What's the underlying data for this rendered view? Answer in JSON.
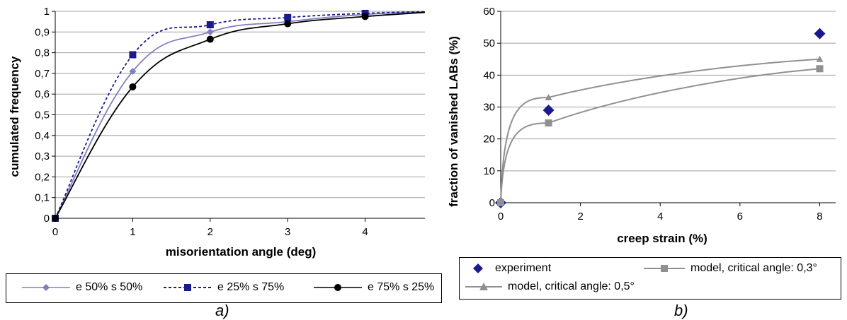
{
  "chart_data": [
    {
      "type": "line",
      "xlabel": "misorientation angle (deg)",
      "ylabel": "cumulated frequency",
      "xlim": [
        0,
        5
      ],
      "ylim": [
        0,
        1
      ],
      "x_ticks": [
        "0",
        "1",
        "2",
        "3",
        "4",
        "5"
      ],
      "y_ticks": [
        "0",
        "0,1",
        "0,2",
        "0,3",
        "0,4",
        "0,5",
        "0,6",
        "0,7",
        "0,8",
        "0,9",
        "1"
      ],
      "grid": "horizontal",
      "legend_position": "bottom",
      "caption": "a)",
      "series": [
        {
          "name": "e 50% s 50%",
          "color": "#8080c0",
          "dash": "solid",
          "marker": "diamond",
          "x": [
            0,
            1,
            2,
            3,
            4,
            5
          ],
          "values": [
            0,
            0.71,
            0.9,
            0.95,
            0.985,
            1.0
          ]
        },
        {
          "name": "e 25% s 75%",
          "color": "#1a1a8c",
          "dash": "dotted",
          "marker": "square",
          "x": [
            0,
            1,
            2,
            3,
            4,
            5
          ],
          "values": [
            0,
            0.79,
            0.935,
            0.97,
            0.99,
            1.0
          ]
        },
        {
          "name": "e 75% s 25%",
          "color": "#000000",
          "dash": "solid",
          "marker": "circle",
          "x": [
            0,
            1,
            2,
            3,
            4,
            5
          ],
          "values": [
            0,
            0.635,
            0.865,
            0.94,
            0.975,
            1.0
          ]
        }
      ]
    },
    {
      "type": "scatter",
      "xlabel": "creep strain (%)",
      "ylabel": "fraction of vanished LABs (%)",
      "xlim": [
        0,
        8.4
      ],
      "ylim": [
        0,
        60
      ],
      "x_ticks": [
        "0",
        "2",
        "4",
        "6",
        "8"
      ],
      "y_ticks": [
        "0",
        "10",
        "20",
        "30",
        "40",
        "50",
        "60"
      ],
      "grid": "horizontal",
      "legend_position": "bottom",
      "caption": "b)",
      "series": [
        {
          "name": "experiment",
          "color": "#1a1a8c",
          "marker": "diamond",
          "line": false,
          "x": [
            0,
            1.2,
            8
          ],
          "values": [
            0,
            29,
            53
          ]
        },
        {
          "name": "model, critical angle: 0,3°",
          "color": "#909090",
          "marker": "square",
          "line": true,
          "x": [
            0,
            1.2,
            8
          ],
          "values": [
            0,
            25,
            42
          ]
        },
        {
          "name": "model, critical angle: 0,5°",
          "color": "#909090",
          "marker": "triangle",
          "line": true,
          "x": [
            0,
            1.2,
            8
          ],
          "values": [
            0,
            33,
            45
          ]
        }
      ]
    }
  ]
}
